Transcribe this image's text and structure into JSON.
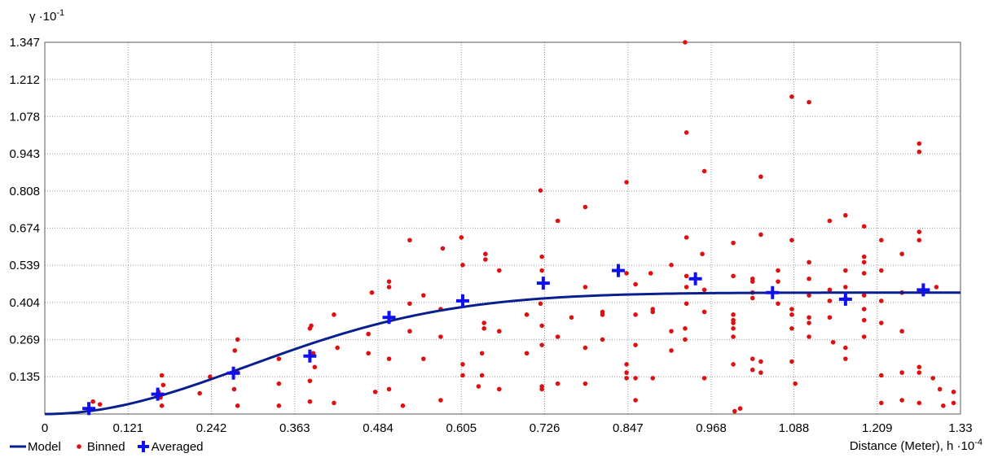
{
  "chart_data": {
    "type": "scatter",
    "ylabel_base": "γ ·10",
    "ylabel_exp": "-1",
    "xlabel_base": "Distance (Meter), h ·10",
    "xlabel_exp": "-4",
    "xlim": [
      0,
      1.33
    ],
    "ylim": [
      0,
      1.347
    ],
    "xticks": [
      "0",
      "0.121",
      "0.242",
      "0.363",
      "0.484",
      "0.605",
      "0.726",
      "0.847",
      "0.968",
      "1.088",
      "1.209",
      "1.33"
    ],
    "xtick_values": [
      0,
      0.121,
      0.242,
      0.363,
      0.484,
      0.605,
      0.726,
      0.847,
      0.968,
      1.088,
      1.209,
      1.33
    ],
    "yticks": [
      "0.135",
      "0.269",
      "0.404",
      "0.539",
      "0.674",
      "0.808",
      "0.943",
      "1.078",
      "1.212",
      "1.347"
    ],
    "ytick_values": [
      0.135,
      0.269,
      0.404,
      0.539,
      0.674,
      0.808,
      0.943,
      1.078,
      1.212,
      1.347
    ],
    "grid": true,
    "legend": {
      "position": "bottom-left",
      "items": [
        "Model",
        "Binned",
        "Averaged"
      ]
    },
    "colors": {
      "model": "#0a1f8f",
      "binned": "#dd1111",
      "averaged": "#1010ee",
      "grid": "#9a9a9a",
      "background": "#ffffff"
    },
    "model": {
      "type": "gaussian",
      "nugget": 0,
      "sill": 0.44,
      "range": 0.72,
      "x_end": 1.33
    },
    "averaged": [
      [
        0.064,
        0.02
      ],
      [
        0.164,
        0.072
      ],
      [
        0.274,
        0.148
      ],
      [
        0.385,
        0.21
      ],
      [
        0.5,
        0.35
      ],
      [
        0.607,
        0.41
      ],
      [
        0.724,
        0.474
      ],
      [
        0.833,
        0.52
      ],
      [
        0.945,
        0.49
      ],
      [
        1.057,
        0.44
      ],
      [
        1.163,
        0.416
      ],
      [
        1.276,
        0.45
      ]
    ],
    "binned": [
      [
        0.07,
        0.045
      ],
      [
        0.08,
        0.035
      ],
      [
        0.165,
        0.08
      ],
      [
        0.17,
        0.14
      ],
      [
        0.172,
        0.105
      ],
      [
        0.168,
        0.06
      ],
      [
        0.17,
        0.03
      ],
      [
        0.24,
        0.135
      ],
      [
        0.225,
        0.075
      ],
      [
        0.28,
        0.27
      ],
      [
        0.276,
        0.23
      ],
      [
        0.28,
        0.15
      ],
      [
        0.275,
        0.09
      ],
      [
        0.28,
        0.03
      ],
      [
        0.34,
        0.2
      ],
      [
        0.34,
        0.11
      ],
      [
        0.34,
        0.03
      ],
      [
        0.387,
        0.32
      ],
      [
        0.385,
        0.31
      ],
      [
        0.39,
        0.22
      ],
      [
        0.392,
        0.17
      ],
      [
        0.385,
        0.12
      ],
      [
        0.385,
        0.045
      ],
      [
        0.42,
        0.36
      ],
      [
        0.425,
        0.24
      ],
      [
        0.42,
        0.04
      ],
      [
        0.475,
        0.44
      ],
      [
        0.47,
        0.29
      ],
      [
        0.47,
        0.22
      ],
      [
        0.48,
        0.08
      ],
      [
        0.5,
        0.48
      ],
      [
        0.5,
        0.46
      ],
      [
        0.5,
        0.2
      ],
      [
        0.5,
        0.09
      ],
      [
        0.53,
        0.63
      ],
      [
        0.53,
        0.4
      ],
      [
        0.53,
        0.3
      ],
      [
        0.52,
        0.03
      ],
      [
        0.55,
        0.43
      ],
      [
        0.55,
        0.2
      ],
      [
        0.578,
        0.6
      ],
      [
        0.575,
        0.38
      ],
      [
        0.575,
        0.28
      ],
      [
        0.575,
        0.05
      ],
      [
        0.605,
        0.64
      ],
      [
        0.607,
        0.54
      ],
      [
        0.607,
        0.18
      ],
      [
        0.607,
        0.14
      ],
      [
        0.64,
        0.58
      ],
      [
        0.64,
        0.56
      ],
      [
        0.638,
        0.33
      ],
      [
        0.638,
        0.31
      ],
      [
        0.635,
        0.22
      ],
      [
        0.635,
        0.14
      ],
      [
        0.63,
        0.1
      ],
      [
        0.66,
        0.52
      ],
      [
        0.66,
        0.3
      ],
      [
        0.66,
        0.09
      ],
      [
        0.7,
        0.36
      ],
      [
        0.7,
        0.22
      ],
      [
        0.72,
        0.81
      ],
      [
        0.722,
        0.57
      ],
      [
        0.722,
        0.52
      ],
      [
        0.72,
        0.4
      ],
      [
        0.722,
        0.32
      ],
      [
        0.722,
        0.25
      ],
      [
        0.722,
        0.1
      ],
      [
        0.722,
        0.09
      ],
      [
        0.745,
        0.7
      ],
      [
        0.745,
        0.28
      ],
      [
        0.745,
        0.11
      ],
      [
        0.765,
        0.35
      ],
      [
        0.785,
        0.75
      ],
      [
        0.785,
        0.46
      ],
      [
        0.785,
        0.24
      ],
      [
        0.785,
        0.11
      ],
      [
        0.81,
        0.37
      ],
      [
        0.81,
        0.36
      ],
      [
        0.81,
        0.27
      ],
      [
        0.845,
        0.84
      ],
      [
        0.845,
        0.51
      ],
      [
        0.845,
        0.18
      ],
      [
        0.845,
        0.15
      ],
      [
        0.845,
        0.13
      ],
      [
        0.858,
        0.47
      ],
      [
        0.858,
        0.36
      ],
      [
        0.858,
        0.25
      ],
      [
        0.858,
        0.13
      ],
      [
        0.858,
        0.05
      ],
      [
        0.88,
        0.51
      ],
      [
        0.883,
        0.38
      ],
      [
        0.883,
        0.37
      ],
      [
        0.883,
        0.13
      ],
      [
        0.91,
        0.54
      ],
      [
        0.91,
        0.3
      ],
      [
        0.91,
        0.23
      ],
      [
        0.93,
        1.347
      ],
      [
        0.932,
        1.02
      ],
      [
        0.932,
        0.64
      ],
      [
        0.932,
        0.5
      ],
      [
        0.932,
        0.46
      ],
      [
        0.932,
        0.4
      ],
      [
        0.93,
        0.31
      ],
      [
        0.93,
        0.27
      ],
      [
        0.958,
        0.88
      ],
      [
        0.955,
        0.58
      ],
      [
        0.958,
        0.45
      ],
      [
        0.958,
        0.37
      ],
      [
        0.958,
        0.13
      ],
      [
        1.0,
        0.62
      ],
      [
        1.0,
        0.5
      ],
      [
        1.0,
        0.36
      ],
      [
        1.0,
        0.34
      ],
      [
        1.0,
        0.33
      ],
      [
        1.0,
        0.31
      ],
      [
        1.0,
        0.28
      ],
      [
        1.0,
        0.18
      ],
      [
        1.002,
        0.01
      ],
      [
        1.01,
        0.02
      ],
      [
        1.028,
        0.49
      ],
      [
        1.028,
        0.48
      ],
      [
        1.028,
        0.44
      ],
      [
        1.028,
        0.42
      ],
      [
        1.028,
        0.2
      ],
      [
        1.028,
        0.16
      ],
      [
        1.04,
        0.86
      ],
      [
        1.04,
        0.65
      ],
      [
        1.04,
        0.19
      ],
      [
        1.04,
        0.15
      ],
      [
        1.065,
        0.52
      ],
      [
        1.065,
        0.48
      ],
      [
        1.065,
        0.4
      ],
      [
        1.085,
        1.15
      ],
      [
        1.085,
        0.63
      ],
      [
        1.085,
        0.38
      ],
      [
        1.085,
        0.36
      ],
      [
        1.085,
        0.31
      ],
      [
        1.085,
        0.19
      ],
      [
        1.09,
        0.11
      ],
      [
        1.11,
        1.13
      ],
      [
        1.11,
        0.55
      ],
      [
        1.11,
        0.49
      ],
      [
        1.11,
        0.43
      ],
      [
        1.11,
        0.35
      ],
      [
        1.11,
        0.33
      ],
      [
        1.11,
        0.28
      ],
      [
        1.14,
        0.7
      ],
      [
        1.14,
        0.45
      ],
      [
        1.14,
        0.41
      ],
      [
        1.14,
        0.35
      ],
      [
        1.145,
        0.26
      ],
      [
        1.163,
        0.72
      ],
      [
        1.163,
        0.52
      ],
      [
        1.163,
        0.46
      ],
      [
        1.163,
        0.42
      ],
      [
        1.163,
        0.24
      ],
      [
        1.163,
        0.2
      ],
      [
        1.19,
        0.68
      ],
      [
        1.19,
        0.57
      ],
      [
        1.19,
        0.55
      ],
      [
        1.19,
        0.51
      ],
      [
        1.19,
        0.43
      ],
      [
        1.19,
        0.38
      ],
      [
        1.19,
        0.34
      ],
      [
        1.19,
        0.28
      ],
      [
        1.215,
        0.63
      ],
      [
        1.215,
        0.52
      ],
      [
        1.215,
        0.41
      ],
      [
        1.215,
        0.33
      ],
      [
        1.215,
        0.14
      ],
      [
        1.215,
        0.04
      ],
      [
        1.245,
        0.58
      ],
      [
        1.245,
        0.44
      ],
      [
        1.245,
        0.3
      ],
      [
        1.245,
        0.15
      ],
      [
        1.245,
        0.05
      ],
      [
        1.27,
        0.98
      ],
      [
        1.27,
        0.95
      ],
      [
        1.27,
        0.66
      ],
      [
        1.27,
        0.63
      ],
      [
        1.27,
        0.17
      ],
      [
        1.27,
        0.15
      ],
      [
        1.27,
        0.04
      ],
      [
        1.29,
        0.13
      ],
      [
        1.295,
        0.46
      ],
      [
        1.3,
        0.09
      ],
      [
        1.305,
        0.03
      ],
      [
        1.32,
        0.08
      ],
      [
        1.32,
        0.04
      ]
    ]
  }
}
